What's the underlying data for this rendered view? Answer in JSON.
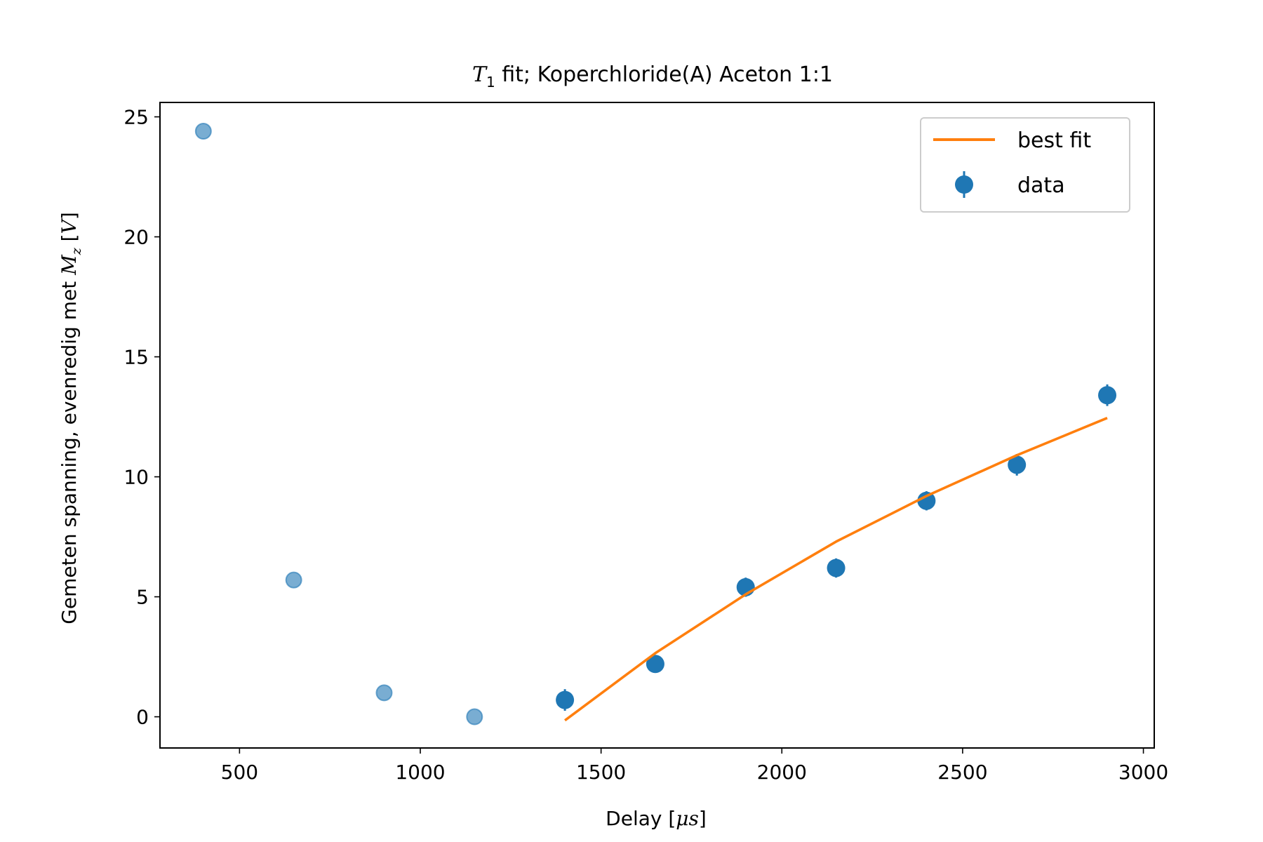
{
  "chart_data": {
    "type": "scatter",
    "title": {
      "symbol": "T",
      "subscript": "1",
      "rest": " fit; Koperchloride(A) Aceton 1:1"
    },
    "xlabel": {
      "before": "Delay [",
      "italic": "μs",
      "after": "]"
    },
    "ylabel": {
      "before": "Gemeten spanning, evenredig met ",
      "italic": "M",
      "subscript": "z",
      "after": " [",
      "italic_unit": "V",
      "close": "]"
    },
    "xlim": [
      280,
      3030
    ],
    "ylim": [
      -1.3,
      25.6
    ],
    "xticks": [
      500,
      1000,
      1500,
      2000,
      2500,
      3000
    ],
    "yticks": [
      0,
      5,
      10,
      15,
      20,
      25
    ],
    "grid": false,
    "legend": {
      "position": "top-right",
      "entries": [
        "best fit",
        "data"
      ]
    },
    "series": [
      {
        "name": "data",
        "kind": "excluded-points",
        "color": "#1f77b4",
        "alpha": 0.6,
        "points": [
          {
            "x": 400,
            "y": 24.4
          },
          {
            "x": 650,
            "y": 5.7
          },
          {
            "x": 900,
            "y": 1.0
          },
          {
            "x": 1150,
            "y": 0.0
          }
        ]
      },
      {
        "name": "data",
        "kind": "errorbar-points",
        "color": "#1f77b4",
        "points": [
          {
            "x": 1400,
            "y": 0.7,
            "err": 0.45
          },
          {
            "x": 1650,
            "y": 2.2,
            "err": 0.35
          },
          {
            "x": 1900,
            "y": 5.4,
            "err": 0.4
          },
          {
            "x": 2150,
            "y": 6.2,
            "err": 0.4
          },
          {
            "x": 2400,
            "y": 9.0,
            "err": 0.4
          },
          {
            "x": 2650,
            "y": 10.5,
            "err": 0.45
          },
          {
            "x": 2900,
            "y": 13.4,
            "err": 0.45
          }
        ]
      },
      {
        "name": "best fit",
        "kind": "line",
        "color": "#ff7f0e",
        "points": [
          {
            "x": 1400,
            "y": -0.15
          },
          {
            "x": 1650,
            "y": 2.65
          },
          {
            "x": 1900,
            "y": 5.1
          },
          {
            "x": 2150,
            "y": 7.3
          },
          {
            "x": 2400,
            "y": 9.2
          },
          {
            "x": 2650,
            "y": 10.9
          },
          {
            "x": 2900,
            "y": 12.45
          }
        ]
      }
    ]
  }
}
